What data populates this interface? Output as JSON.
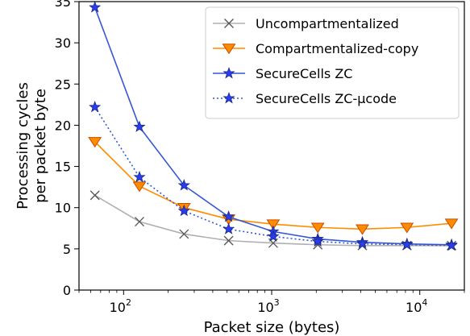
{
  "chart_data": {
    "type": "line",
    "xlabel": "Packet size (bytes)",
    "ylabel_lines": [
      "Processing cycles",
      "per packet byte"
    ],
    "x_scale": "log",
    "xlim": [
      50,
      20000
    ],
    "ylim": [
      0,
      35
    ],
    "yticks": [
      0,
      5,
      10,
      15,
      20,
      25,
      30,
      35
    ],
    "xticks": [
      {
        "value": 100,
        "base": "10",
        "exp": "2"
      },
      {
        "value": 1000,
        "base": "10",
        "exp": "3"
      },
      {
        "value": 10000,
        "base": "10",
        "exp": "4"
      }
    ],
    "grid": false,
    "legend_position": "top-right",
    "series": [
      {
        "name": "Uncompartmentalized",
        "color": "#b0b0b0",
        "marker": "x",
        "marker_color": "#555555",
        "dashed": false,
        "x": [
          64,
          128,
          256,
          512,
          1024,
          2048,
          4096,
          8192,
          16384
        ],
        "y": [
          11.5,
          8.3,
          6.8,
          6.0,
          5.7,
          5.5,
          5.4,
          5.4,
          5.4
        ]
      },
      {
        "name": "Compartmentalized-copy",
        "color": "#ff8c00",
        "marker": "triangle-down",
        "marker_color": "#ff8c00",
        "dashed": false,
        "x": [
          64,
          128,
          256,
          512,
          1024,
          2048,
          4096,
          8192,
          16384
        ],
        "y": [
          18.0,
          12.6,
          10.0,
          8.6,
          8.0,
          7.6,
          7.4,
          7.6,
          8.1
        ]
      },
      {
        "name": "SecureCells ZC",
        "color": "#3457d5",
        "marker": "star",
        "marker_color": "#2b3cf0",
        "dashed": false,
        "x": [
          64,
          128,
          256,
          512,
          1024,
          2048,
          4096,
          8192,
          16384
        ],
        "y": [
          34.3,
          19.8,
          12.7,
          8.9,
          7.1,
          6.2,
          5.8,
          5.6,
          5.5
        ]
      },
      {
        "name": "SecureCells ZC-μcode",
        "color": "#3457d5",
        "marker": "star",
        "marker_color": "#2b3cf0",
        "dashed": true,
        "x": [
          64,
          128,
          256,
          512,
          1024,
          2048,
          4096,
          8192,
          16384
        ],
        "y": [
          22.2,
          13.7,
          9.6,
          7.4,
          6.5,
          5.9,
          5.6,
          5.5,
          5.4
        ]
      }
    ]
  }
}
